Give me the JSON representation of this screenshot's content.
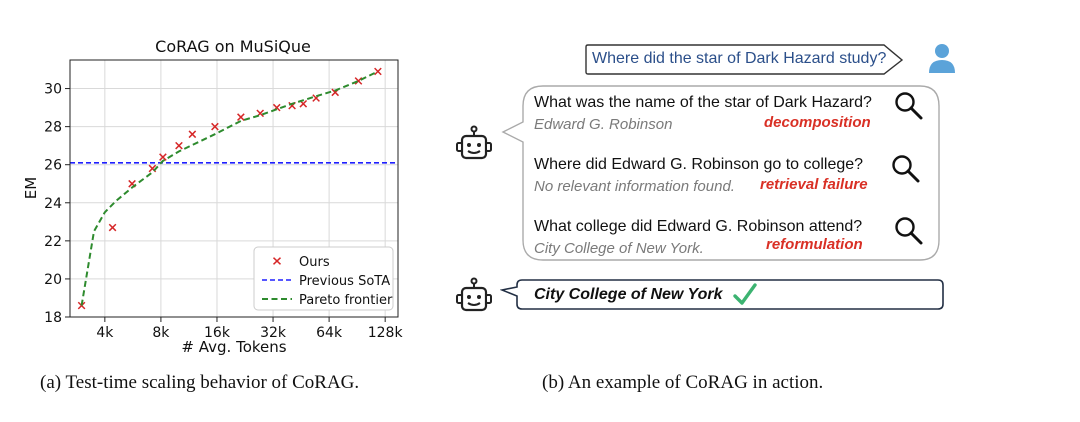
{
  "chart_data": {
    "type": "scatter",
    "title": "CoRAG on MuSiQue",
    "xlabel": "# Avg. Tokens",
    "ylabel": "EM",
    "x_scale": "log2",
    "xlim": [
      2600,
      150000
    ],
    "ylim": [
      18,
      31.5
    ],
    "x_ticks": [
      4000,
      8000,
      16000,
      32000,
      64000,
      128000
    ],
    "x_tick_labels": [
      "4k",
      "8k",
      "16k",
      "32k",
      "64k",
      "128k"
    ],
    "y_ticks": [
      18,
      20,
      22,
      24,
      26,
      28,
      30
    ],
    "y_tick_labels": [
      "18",
      "20",
      "22",
      "24",
      "26",
      "28",
      "30"
    ],
    "grid": true,
    "legend": "lower-right",
    "series": [
      {
        "name": "Ours",
        "kind": "scatter",
        "color": "#d62728",
        "x": [
          3000,
          4400,
          5600,
          7200,
          8200,
          10000,
          11800,
          15600,
          21500,
          27300,
          33500,
          40500,
          46500,
          54500,
          69000,
          92000,
          117000
        ],
        "y": [
          18.6,
          22.7,
          25.0,
          25.8,
          26.4,
          27.0,
          27.6,
          28.0,
          28.5,
          28.7,
          29.0,
          29.1,
          29.2,
          29.5,
          29.8,
          30.4,
          30.9
        ]
      },
      {
        "name": "Previous SoTA",
        "kind": "hline",
        "color": "#1f1fff",
        "y": 26.1
      },
      {
        "name": "Pareto frontier",
        "kind": "dashed-line",
        "color": "#2e8b2e",
        "x": [
          3000,
          3500,
          4000,
          4600,
          5600,
          7200,
          8200,
          10000,
          15600,
          21500,
          27300,
          40500,
          54500,
          69000,
          92000,
          117000
        ],
        "y": [
          18.6,
          22.5,
          23.5,
          24.1,
          24.8,
          25.6,
          26.2,
          26.7,
          27.6,
          28.3,
          28.6,
          29.2,
          29.6,
          29.9,
          30.4,
          30.9
        ]
      }
    ]
  },
  "captions": {
    "left": "(a) Test-time scaling behavior of CoRAG.",
    "right": "(b) An example of CoRAG in action."
  },
  "example": {
    "question": "Where did the star of Dark Hazard study?",
    "steps": [
      {
        "query": "What was the name of the star of Dark Hazard?",
        "answer": "Edward G. Robinson",
        "tag": "decomposition"
      },
      {
        "query": "Where did Edward G. Robinson go to college?",
        "answer": "No relevant information found.",
        "tag": "retrieval failure"
      },
      {
        "query": "What college did Edward G. Robinson attend?",
        "answer": "City College of New York.",
        "tag": "reformulation"
      }
    ],
    "final_answer": "City College of New York",
    "colors": {
      "question_text": "#2b4f8a",
      "question_border": "#333333",
      "user_icon": "#5ba3d9",
      "chain_border": "#aaaaaa",
      "final_border": "#222f44",
      "tag": "#d93025",
      "check": "#3cb371"
    },
    "icons": [
      "user-icon",
      "robot-icon",
      "magnifier-icon",
      "checkmark-icon"
    ]
  }
}
